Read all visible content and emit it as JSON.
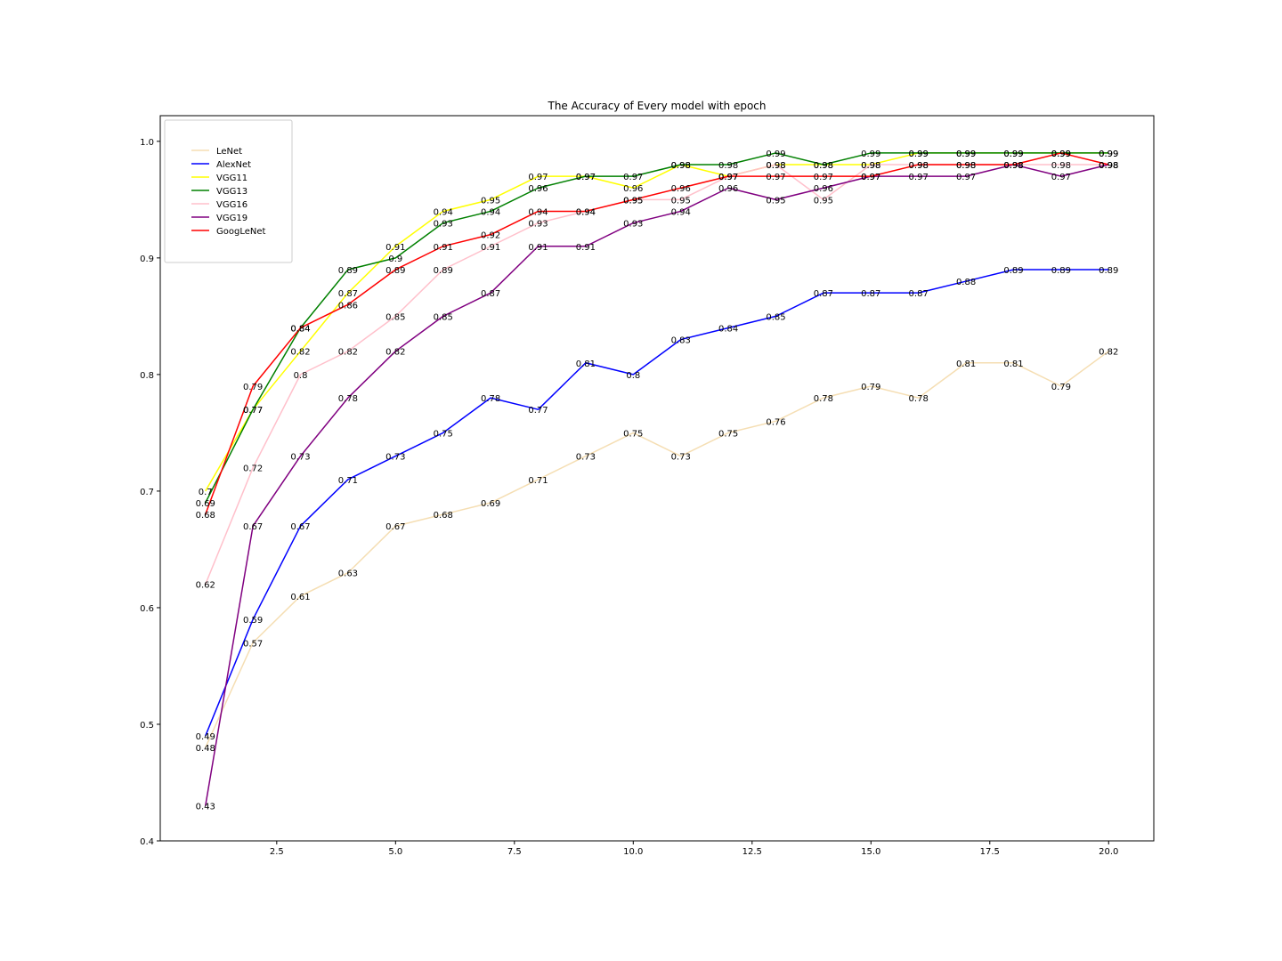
{
  "chart_data": {
    "type": "line",
    "title": "The Accuracy of Every model with epoch",
    "xlabel": "",
    "ylabel": "",
    "xlim": [
      0.05,
      20.95
    ],
    "ylim": [
      0.4,
      1.022
    ],
    "xticks": [
      2.5,
      5.0,
      7.5,
      10.0,
      12.5,
      15.0,
      17.5,
      20.0
    ],
    "yticks": [
      0.4,
      0.5,
      0.6,
      0.7,
      0.8,
      0.9,
      1.0
    ],
    "grid": false,
    "legend_position": "top-left",
    "x": [
      1,
      2,
      3,
      4,
      5,
      6,
      7,
      8,
      9,
      10,
      11,
      12,
      13,
      14,
      15,
      16,
      17,
      18,
      19,
      20
    ],
    "series": [
      {
        "name": "LeNet",
        "color": "#f5deb3",
        "values": [
          0.48,
          0.57,
          0.61,
          0.63,
          0.67,
          0.68,
          0.69,
          0.71,
          0.73,
          0.75,
          0.73,
          0.75,
          0.76,
          0.78,
          0.79,
          0.78,
          0.81,
          0.81,
          0.79,
          0.82
        ]
      },
      {
        "name": "AlexNet",
        "color": "#0000ff",
        "values": [
          0.49,
          0.59,
          0.67,
          0.71,
          0.73,
          0.75,
          0.78,
          0.77,
          0.81,
          0.8,
          0.83,
          0.84,
          0.85,
          0.87,
          0.87,
          0.87,
          0.88,
          0.89,
          0.89,
          0.89
        ]
      },
      {
        "name": "VGG11",
        "color": "#ffff00",
        "values": [
          0.7,
          0.77,
          0.82,
          0.87,
          0.91,
          0.94,
          0.95,
          0.97,
          0.97,
          0.96,
          0.98,
          0.97,
          0.98,
          0.98,
          0.98,
          0.99,
          0.99,
          0.99,
          0.99,
          0.99
        ]
      },
      {
        "name": "VGG13",
        "color": "#008000",
        "values": [
          0.69,
          0.77,
          0.84,
          0.89,
          0.9,
          0.93,
          0.94,
          0.96,
          0.97,
          0.97,
          0.98,
          0.98,
          0.99,
          0.98,
          0.99,
          0.99,
          0.99,
          0.99,
          0.99,
          0.99
        ]
      },
      {
        "name": "VGG16",
        "color": "#ffc0cb",
        "values": [
          0.62,
          0.72,
          0.8,
          0.82,
          0.85,
          0.89,
          0.91,
          0.93,
          0.94,
          0.95,
          0.95,
          0.97,
          0.98,
          0.95,
          0.98,
          0.98,
          0.98,
          0.98,
          0.98,
          0.98
        ]
      },
      {
        "name": "VGG19",
        "color": "#800080",
        "values": [
          0.43,
          0.67,
          0.73,
          0.78,
          0.82,
          0.85,
          0.87,
          0.91,
          0.91,
          0.93,
          0.94,
          0.96,
          0.95,
          0.96,
          0.97,
          0.97,
          0.97,
          0.98,
          0.97,
          0.98
        ]
      },
      {
        "name": "GoogLeNet",
        "color": "#ff0000",
        "values": [
          0.68,
          0.79,
          0.84,
          0.86,
          0.89,
          0.91,
          0.92,
          0.94,
          0.94,
          0.95,
          0.96,
          0.97,
          0.97,
          0.97,
          0.97,
          0.98,
          0.98,
          0.98,
          0.99,
          0.98
        ]
      }
    ]
  }
}
